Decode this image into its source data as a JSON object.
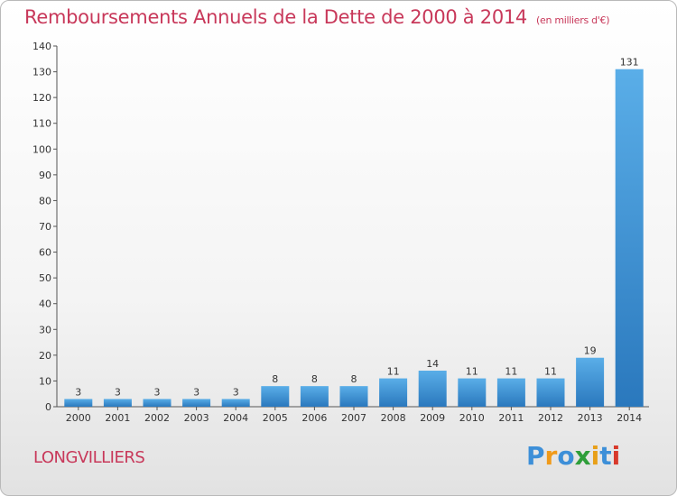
{
  "title": "Remboursements Annuels de la Dette de 2000 à 2014",
  "unit_label": "(en milliers d'€)",
  "place": "LONGVILLIERS",
  "logo": {
    "letters": [
      "P",
      "r",
      "o",
      "x",
      "i",
      "t",
      "i"
    ],
    "colors": [
      "#3d8fd8",
      "#f09a1a",
      "#3d8fd8",
      "#2f9e3a",
      "#e8a019",
      "#3d8fd8",
      "#d8392b"
    ]
  },
  "colors": {
    "bar_light": "#5aaee8",
    "bar_dark": "#2a78bd",
    "text_accent": "#c8385a"
  },
  "chart_data": {
    "type": "bar",
    "categories": [
      "2000",
      "2001",
      "2002",
      "2003",
      "2004",
      "2005",
      "2006",
      "2007",
      "2008",
      "2009",
      "2010",
      "2011",
      "2012",
      "2013",
      "2014"
    ],
    "values": [
      3,
      3,
      3,
      3,
      3,
      8,
      8,
      8,
      11,
      14,
      11,
      11,
      11,
      19,
      131
    ],
    "ylim": [
      0,
      140
    ],
    "yticks": [
      0,
      10,
      20,
      30,
      40,
      50,
      60,
      70,
      80,
      90,
      100,
      110,
      120,
      130,
      140
    ],
    "grid": false,
    "legend": "none"
  }
}
